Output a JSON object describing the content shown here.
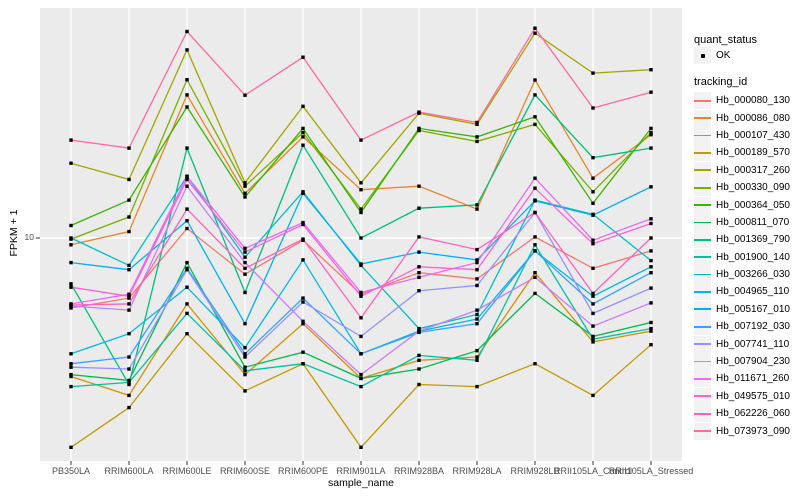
{
  "figure": {
    "y_axis": {
      "label": "FPKM + 1",
      "tick": "10"
    },
    "x_axis": {
      "label": "sample_name"
    },
    "legend": {
      "quant_title": "quant_status",
      "quant_items": [
        {
          "label": "OK"
        }
      ],
      "tracking_title": "tracking_id"
    },
    "colors": {
      "panel_bg": "#EBEBEB",
      "grid": "#FFFFFF",
      "axis_text": "#4D4D4D",
      "legend_key_bg": "#F2F2F2",
      "point": "#000000"
    }
  },
  "chart_data": {
    "type": "line",
    "title": "",
    "xlabel": "sample_name",
    "ylabel": "FPKM + 1",
    "y_scale": "log10",
    "ylim": [
      1.32,
      80
    ],
    "y_tick_labels": [
      "10"
    ],
    "grid": "major-only",
    "legend_position": "right",
    "quant_status": "OK",
    "marker": "black-square",
    "categories": [
      "PB350LA",
      "RRIM600LA",
      "RRIM600LE",
      "RRIM600SE",
      "RRIM600PE",
      "RRIM901LA",
      "RRIM928BA",
      "RRIM928LA",
      "RRIM928LB",
      "RRII105LA_Control",
      "RRII105LA_Stressed"
    ],
    "series": [
      {
        "name": "Hb_000080_130",
        "color": "#F8766D",
        "values": [
          5.3,
          5.8,
          10.9,
          7.2,
          9.8,
          6.0,
          7.3,
          6.9,
          10.1,
          7.6,
          8.9
        ]
      },
      {
        "name": "Hb_000086_080",
        "color": "#E88526",
        "values": [
          9.4,
          10.6,
          36.6,
          15.0,
          25.0,
          15.5,
          16.0,
          13.0,
          41.9,
          17.2,
          25.5
        ]
      },
      {
        "name": "Hb_000107_430",
        "color": "#D89000",
        "values": [
          2.85,
          2.4,
          5.5,
          2.9,
          4.6,
          2.8,
          3.3,
          3.4,
          7.3,
          3.9,
          4.3
        ]
      },
      {
        "name": "Hb_000189_570",
        "color": "#C09B00",
        "values": [
          1.5,
          2.15,
          4.2,
          2.5,
          3.2,
          1.5,
          2.65,
          2.6,
          3.2,
          2.4,
          3.8
        ]
      },
      {
        "name": "Hb_000317_260",
        "color": "#A3A500",
        "values": [
          19.7,
          17.0,
          55.0,
          16.5,
          33.0,
          16.5,
          31.0,
          28.0,
          64.0,
          44.6,
          46.0
        ]
      },
      {
        "name": "Hb_000330_090",
        "color": "#7CAE00",
        "values": [
          9.9,
          12.1,
          42.0,
          16.0,
          26.0,
          13.0,
          26.5,
          24.0,
          28.0,
          15.2,
          26.0
        ]
      },
      {
        "name": "Hb_000364_050",
        "color": "#39B600",
        "values": [
          11.2,
          14.1,
          32.8,
          14.5,
          27.0,
          12.6,
          27.0,
          25.0,
          30.0,
          13.7,
          27.0
        ]
      },
      {
        "name": "Hb_000811_070",
        "color": "#00BB4E",
        "values": [
          2.9,
          2.75,
          8.0,
          3.1,
          3.55,
          2.8,
          3.05,
          3.6,
          6.05,
          4.1,
          4.65
        ]
      },
      {
        "name": "Hb_001369_790",
        "color": "#00BF7D",
        "values": [
          6.6,
          2.65,
          22.6,
          6.1,
          23.2,
          10.0,
          13.1,
          13.5,
          36.6,
          20.7,
          22.6
        ]
      },
      {
        "name": "Hb_001900_140",
        "color": "#00C1A3",
        "values": [
          2.6,
          2.7,
          5.05,
          3.0,
          3.2,
          2.6,
          3.45,
          3.3,
          9.4,
          4.0,
          4.4
        ]
      },
      {
        "name": "Hb_003266_030",
        "color": "#00BFC4",
        "values": [
          10.0,
          7.8,
          17.5,
          8.4,
          15.2,
          7.8,
          4.4,
          5.0,
          14.1,
          12.4,
          8.15
        ]
      },
      {
        "name": "Hb_004965_110",
        "color": "#00BAE0",
        "values": [
          3.5,
          4.2,
          6.4,
          3.7,
          8.2,
          3.5,
          4.3,
          4.8,
          8.9,
          5.9,
          7.7
        ]
      },
      {
        "name": "Hb_005167_010",
        "color": "#00B0F6",
        "values": [
          8.0,
          7.5,
          11.7,
          4.6,
          15.0,
          7.9,
          8.8,
          8.2,
          14.0,
          12.3,
          15.9
        ]
      },
      {
        "name": "Hb_007192_030",
        "color": "#35A2FF",
        "values": [
          3.2,
          3.4,
          7.6,
          3.5,
          5.8,
          3.5,
          4.25,
          4.6,
          8.9,
          5.5,
          7.3
        ]
      },
      {
        "name": "Hb_007741_110",
        "color": "#9590FF",
        "values": [
          3.1,
          3.05,
          7.5,
          3.4,
          5.6,
          4.1,
          6.2,
          6.5,
          12.6,
          5.05,
          6.35
        ]
      },
      {
        "name": "Hb_007904_230",
        "color": "#C77CFF",
        "values": [
          5.4,
          5.2,
          16.0,
          8.0,
          4.7,
          2.9,
          4.3,
          5.2,
          7.0,
          4.5,
          5.55
        ]
      },
      {
        "name": "Hb_011671_260",
        "color": "#E76BF3",
        "values": [
          5.5,
          6.0,
          17.5,
          9.1,
          11.5,
          6.1,
          7.0,
          8.0,
          17.2,
          9.8,
          11.9
        ]
      },
      {
        "name": "Hb_049575_010",
        "color": "#FA62DB",
        "values": [
          6.4,
          5.9,
          17.0,
          8.8,
          11.3,
          5.9,
          7.7,
          7.5,
          15.7,
          9.5,
          11.4
        ]
      },
      {
        "name": "Hb_062226_060",
        "color": "#FF62BC",
        "values": [
          5.45,
          5.5,
          13.0,
          7.6,
          9.9,
          4.85,
          10.1,
          9.0,
          12.6,
          6.05,
          10.0
        ]
      },
      {
        "name": "Hb_073973_090",
        "color": "#FF6A98",
        "values": [
          24.3,
          22.6,
          65.0,
          36.5,
          51.5,
          24.3,
          31.3,
          28.5,
          67.0,
          32.5,
          37.5
        ]
      }
    ]
  }
}
